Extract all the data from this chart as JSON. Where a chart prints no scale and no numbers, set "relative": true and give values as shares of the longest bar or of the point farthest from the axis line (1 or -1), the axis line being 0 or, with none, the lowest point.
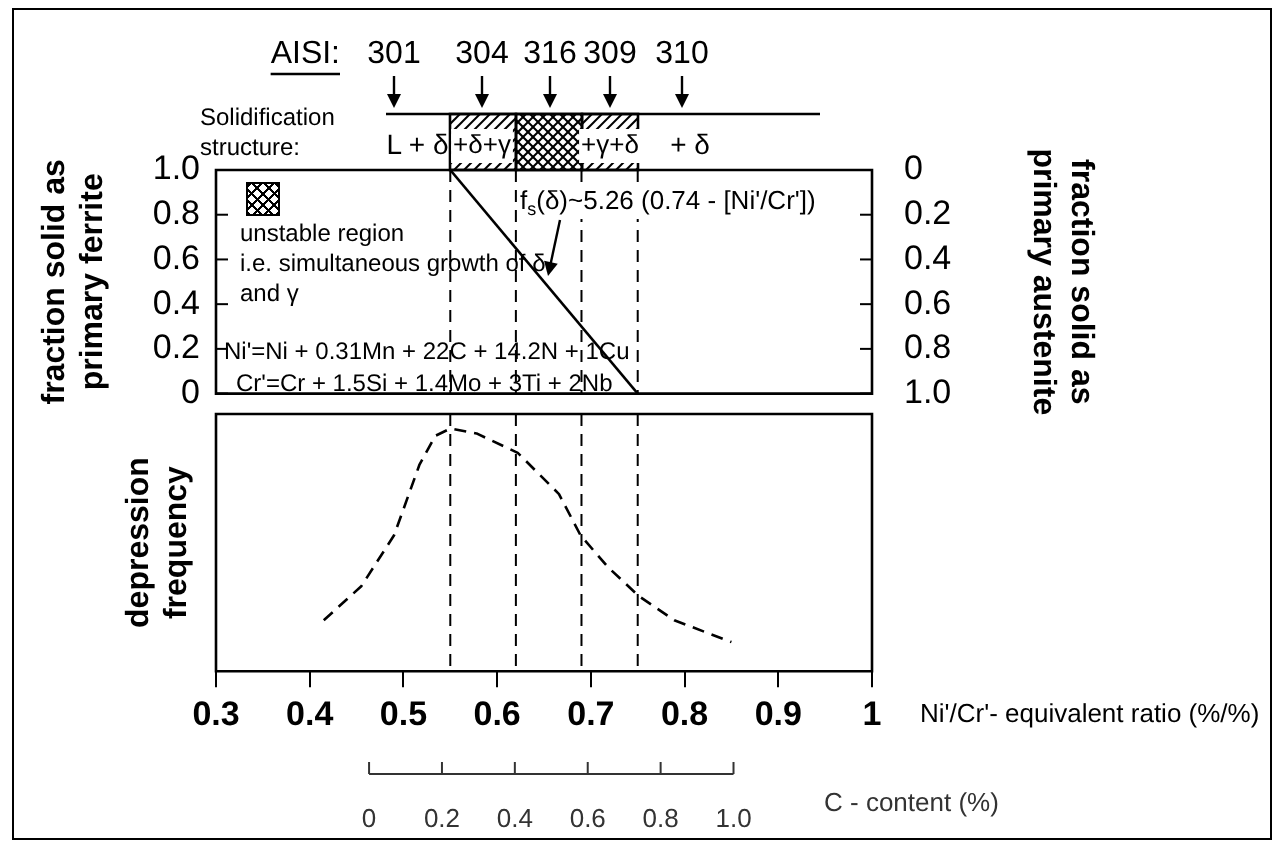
{
  "chart_data": [
    {
      "type": "line",
      "xlim": [
        0.3,
        1
      ],
      "ylim": [
        0,
        1
      ],
      "yticks": [
        0,
        0.2,
        0.4,
        0.6,
        0.8,
        {
          "value": 1,
          "label": "1.0"
        }
      ],
      "y2lim": [
        1,
        0
      ],
      "y2ticks": [
        0,
        0.2,
        0.4,
        0.6,
        0.8,
        {
          "value": 1,
          "label": "1.0"
        }
      ],
      "ylabel": "fraction solid as primary ferrite",
      "y2label": "fraction solid as primary austenite",
      "tick_labels": "y",
      "grid": false,
      "legend": false,
      "series": [
        {
          "color": "#000000",
          "x": [
            0.55,
            0.75
          ],
          "values": [
            1,
            0
          ]
        }
      ],
      "ref_lines": [
        {
          "axis": "x",
          "value": 0.55,
          "line_style": "dashed"
        },
        {
          "axis": "x",
          "value": 0.62,
          "line_style": "dashed"
        },
        {
          "axis": "x",
          "value": 0.69,
          "line_style": "dashed"
        },
        {
          "axis": "x",
          "value": 0.75,
          "line_style": "dashed"
        }
      ],
      "annotations": [
        "AISI:",
        "301",
        "304",
        "316",
        "309",
        "310",
        "Solidification structure:",
        "L + δ",
        "+δ+γ",
        "+γ+δ",
        "+ δ",
        "unstable region",
        "i.e. simultaneous growth of δ and γ",
        "f$_{s}$(δ)~5.26 (0.74 - [Ni'/Cr'])",
        "Ni'=Ni + 0.31Mn + 22C + 14.2N + 1Cu",
        "Cr'=Cr + 1.5Si + 1.4Mo + 3Ti + 2Nb"
      ]
    },
    {
      "type": "line",
      "relative": true,
      "xlim": [
        0.3,
        1
      ],
      "xticks": [
        0.3,
        0.4,
        0.5,
        0.6,
        0.7,
        0.8,
        0.9,
        1
      ],
      "xlabel": "Ni'/Cr'- equivalent ratio (%/%)",
      "x2lim": [
        -0.42,
        1.38
      ],
      "x2ticks": [
        0,
        0.2,
        0.4,
        0.6,
        0.8,
        {
          "value": 1,
          "label": "1.0"
        }
      ],
      "x2label": "C - content (%)",
      "ylabel": "depression frequency",
      "tick_labels": "x",
      "line_style": "dashed",
      "grid": false,
      "legend": false,
      "series": [
        {
          "color": "#000000",
          "x": [
            0.415,
            0.455,
            0.49,
            0.517,
            0.534,
            0.55,
            0.578,
            0.622,
            0.666,
            0.689,
            0.718,
            0.751,
            0.789,
            0.85
          ],
          "values": [
            0.21,
            0.35,
            0.56,
            0.85,
            0.97,
            1,
            0.98,
            0.9,
            0.73,
            0.56,
            0.43,
            0.31,
            0.21,
            0.12
          ]
        }
      ],
      "ref_lines": [
        {
          "axis": "x",
          "value": 0.55,
          "line_style": "dashed"
        },
        {
          "axis": "x",
          "value": 0.62,
          "line_style": "dashed"
        },
        {
          "axis": "x",
          "value": 0.69,
          "line_style": "dashed"
        },
        {
          "axis": "x",
          "value": 0.75,
          "line_style": "dashed"
        }
      ]
    }
  ]
}
